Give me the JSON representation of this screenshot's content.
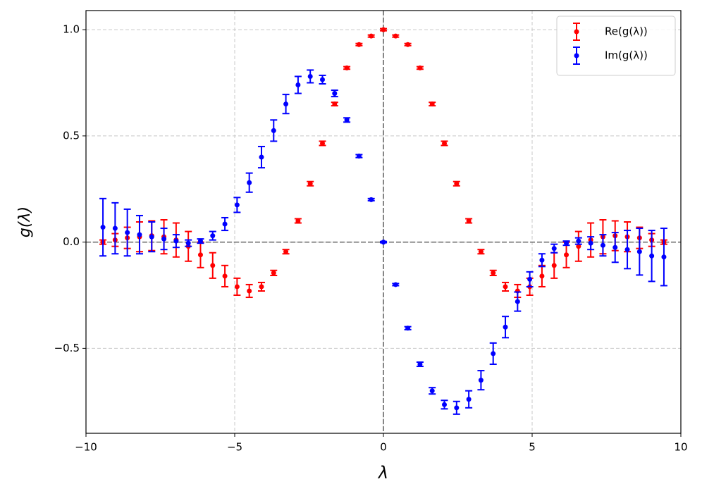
{
  "chart_data": {
    "type": "errorbar",
    "xlabel": "λ",
    "ylabel": "g(λ)",
    "x": [
      -9.43,
      -9.02,
      -8.61,
      -8.2,
      -7.79,
      -7.38,
      -6.97,
      -6.56,
      -6.15,
      -5.74,
      -5.33,
      -4.92,
      -4.51,
      -4.1,
      -3.69,
      -3.28,
      -2.87,
      -2.46,
      -2.05,
      -1.64,
      -1.23,
      -0.82,
      -0.41,
      0,
      0.41,
      0.82,
      1.23,
      1.64,
      2.05,
      2.46,
      2.87,
      3.28,
      3.69,
      4.1,
      4.51,
      4.92,
      5.33,
      5.74,
      6.15,
      6.56,
      6.97,
      7.38,
      7.79,
      8.2,
      8.61,
      9.02,
      9.43
    ],
    "series": [
      {
        "name": "Re(g(λ))",
        "color": "#ff0000",
        "values": [
          0.0,
          0.01,
          0.02,
          0.025,
          0.03,
          0.025,
          0.01,
          -0.02,
          -0.06,
          -0.11,
          -0.16,
          -0.21,
          -0.23,
          -0.21,
          -0.145,
          -0.045,
          0.1,
          0.275,
          0.465,
          0.65,
          0.82,
          0.93,
          0.97,
          1.0,
          0.97,
          0.93,
          0.82,
          0.65,
          0.465,
          0.275,
          0.1,
          -0.045,
          -0.145,
          -0.21,
          -0.23,
          -0.21,
          -0.16,
          -0.11,
          -0.06,
          -0.02,
          0.01,
          0.025,
          0.03,
          0.025,
          0.02,
          0.01,
          0.0
        ],
        "errors": [
          0.01,
          0.03,
          0.05,
          0.07,
          0.07,
          0.08,
          0.08,
          0.07,
          0.06,
          0.06,
          0.05,
          0.04,
          0.03,
          0.02,
          0.012,
          0.01,
          0.01,
          0.01,
          0.01,
          0.008,
          0.006,
          0.005,
          0.005,
          0.005,
          0.005,
          0.005,
          0.006,
          0.008,
          0.01,
          0.01,
          0.01,
          0.01,
          0.012,
          0.02,
          0.03,
          0.04,
          0.05,
          0.06,
          0.06,
          0.07,
          0.08,
          0.08,
          0.07,
          0.07,
          0.05,
          0.03,
          0.01
        ]
      },
      {
        "name": "Im(g(λ))",
        "color": "#0000ff",
        "values": [
          0.07,
          0.065,
          0.045,
          0.035,
          0.025,
          0.015,
          0.005,
          -0.005,
          0.005,
          0.03,
          0.085,
          0.175,
          0.28,
          0.4,
          0.525,
          0.65,
          0.74,
          0.78,
          0.765,
          0.7,
          0.575,
          0.405,
          0.2,
          0,
          -0.2,
          -0.405,
          -0.575,
          -0.7,
          -0.765,
          -0.78,
          -0.74,
          -0.65,
          -0.525,
          -0.4,
          -0.28,
          -0.175,
          -0.085,
          -0.03,
          -0.005,
          0.005,
          -0.005,
          -0.015,
          -0.025,
          -0.035,
          -0.045,
          -0.065,
          -0.07
        ],
        "errors": [
          0.135,
          0.12,
          0.11,
          0.09,
          0.07,
          0.05,
          0.03,
          0.015,
          0.01,
          0.02,
          0.03,
          0.035,
          0.045,
          0.05,
          0.05,
          0.045,
          0.04,
          0.03,
          0.02,
          0.015,
          0.01,
          0.007,
          0.005,
          0.003,
          0.005,
          0.007,
          0.01,
          0.015,
          0.02,
          0.03,
          0.04,
          0.045,
          0.05,
          0.05,
          0.045,
          0.035,
          0.03,
          0.02,
          0.01,
          0.015,
          0.03,
          0.05,
          0.07,
          0.09,
          0.11,
          0.12,
          0.135
        ]
      }
    ],
    "xlim": [
      -10,
      10
    ],
    "ylim": [
      -0.9,
      1.09
    ],
    "xticks": [
      {
        "value": -10,
        "label": "−10"
      },
      {
        "value": -5,
        "label": "−5"
      },
      0,
      5,
      10
    ],
    "yticks": [
      {
        "value": -0.5,
        "label": "−0.5"
      },
      {
        "value": 0,
        "label": "0.0"
      },
      {
        "value": 0.5,
        "label": "0.5"
      },
      {
        "value": 1,
        "label": "1.0"
      }
    ],
    "grid": true,
    "legend": "upper right"
  }
}
